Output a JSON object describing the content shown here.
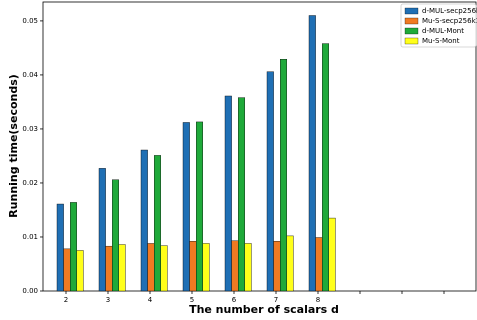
{
  "chart_data": {
    "type": "bar",
    "x_label": "The number of scalars d",
    "y_label": "Running time(seconds)",
    "categories": [
      "2",
      "3",
      "4",
      "5",
      "6",
      "7",
      "8",
      null,
      null,
      null
    ],
    "series": [
      {
        "name": "d-MUL-secp256k",
        "color": "#1f6fb4",
        "values": [
          0.0161,
          0.0227,
          0.0261,
          0.0312,
          0.0361,
          0.0406,
          0.051,
          null,
          null,
          null
        ]
      },
      {
        "name": "Mu-S-secp256k1",
        "color": "#f07a22",
        "values": [
          0.0078,
          0.0083,
          0.0088,
          0.0092,
          0.0093,
          0.0092,
          0.0099,
          null,
          null,
          null
        ]
      },
      {
        "name": "d-MUL-Mont",
        "color": "#1faa3a",
        "values": [
          0.0164,
          0.0206,
          0.0251,
          0.0313,
          0.0358,
          0.0429,
          0.0458,
          null,
          null,
          null
        ]
      },
      {
        "name": "Mu-S-Mont",
        "color": "#ffff1a",
        "values": [
          0.0075,
          0.0086,
          0.0084,
          0.0088,
          0.0088,
          0.0102,
          0.0135,
          null,
          null,
          null
        ]
      }
    ],
    "ylim": [
      0,
      0.0535
    ],
    "yticks": [
      {
        "value": 0,
        "label": "0.00"
      },
      {
        "value": 0.01,
        "label": "0.01"
      },
      {
        "value": 0.02,
        "label": "0.02"
      },
      {
        "value": 0.03,
        "label": "0.03"
      },
      {
        "value": 0.04,
        "label": "0.04"
      },
      {
        "value": 0.05,
        "label": "0.05"
      }
    ],
    "legend": "upper right"
  }
}
